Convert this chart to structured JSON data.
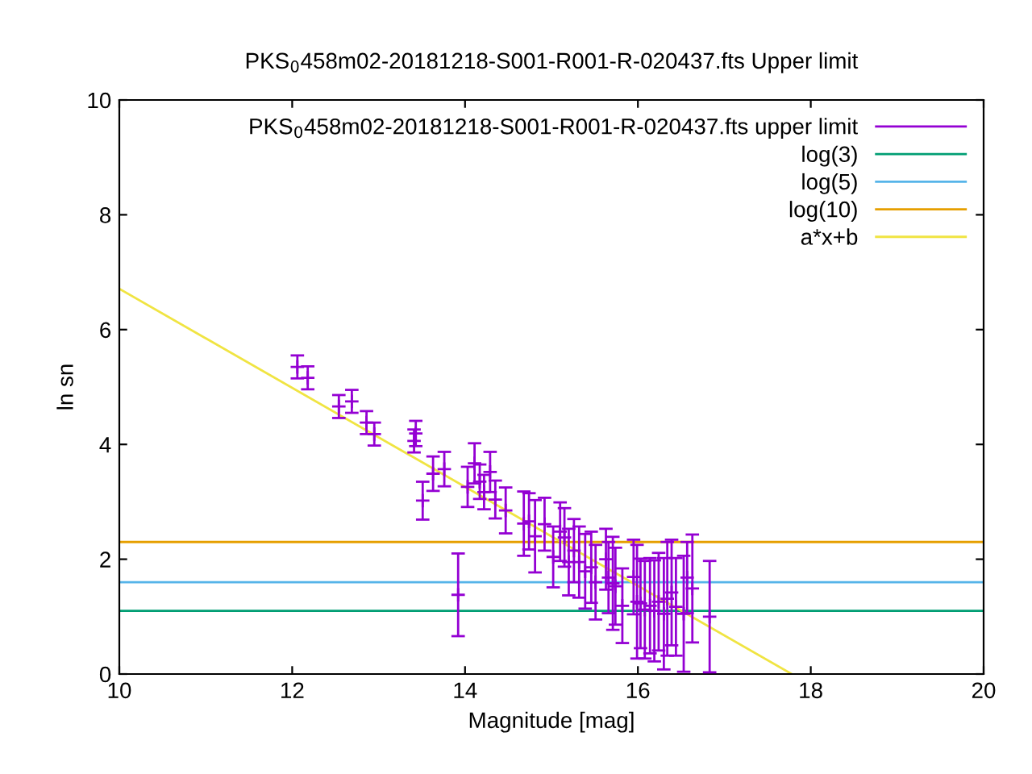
{
  "chart_data": {
    "type": "scatter",
    "title": "PKS$_{0}$458m02-20181218-S001-R001-R-020437.fts Upper limit",
    "xlabel": "Magnitude [mag]",
    "ylabel": "ln sn",
    "xlim": [
      10,
      20
    ],
    "ylim": [
      0,
      10
    ],
    "xticks": [
      10,
      12,
      14,
      16,
      18,
      20
    ],
    "yticks": [
      0,
      2,
      4,
      6,
      8,
      10
    ],
    "grid": false,
    "legend": "top right",
    "series": [
      {
        "name": "PKS$_{0}$458m02-20181218-S001-R001-R-020437.fts upper limit",
        "color": "#9400d3",
        "marker": "cross",
        "x": [
          12.06,
          12.18,
          12.54,
          12.69,
          12.86,
          12.95,
          13.41,
          13.43,
          13.51,
          13.63,
          13.76,
          13.92,
          14.03,
          14.11,
          14.17,
          14.22,
          14.29,
          14.35,
          14.47,
          14.68,
          14.74,
          14.81,
          14.92,
          15.02,
          15.1,
          15.15,
          15.2,
          15.26,
          15.32,
          15.39,
          15.46,
          15.51,
          15.63,
          15.66,
          15.71,
          15.74,
          15.82,
          15.95,
          15.99,
          16.03,
          16.08,
          16.14,
          16.19,
          16.24,
          16.3,
          16.34,
          16.39,
          16.44,
          16.53,
          16.57,
          16.63,
          16.83
        ],
        "values": [
          5.35,
          5.16,
          4.66,
          4.75,
          4.38,
          4.18,
          4.06,
          4.19,
          3.02,
          3.49,
          3.57,
          1.38,
          3.26,
          3.67,
          3.35,
          3.17,
          3.52,
          3.04,
          2.85,
          2.62,
          2.66,
          2.4,
          2.61,
          2.04,
          2.48,
          2.38,
          1.95,
          2.15,
          1.95,
          1.79,
          1.86,
          1.6,
          2.0,
          1.68,
          1.58,
          1.53,
          1.19,
          1.69,
          1.26,
          1.23,
          1.12,
          1.19,
          1.1,
          1.26,
          1.05,
          1.31,
          1.42,
          1.17,
          1.05,
          1.68,
          1.49,
          1.0
        ],
        "errors": [
          0.2,
          0.2,
          0.2,
          0.2,
          0.2,
          0.2,
          0.2,
          0.22,
          0.33,
          0.3,
          0.3,
          0.72,
          0.35,
          0.35,
          0.3,
          0.3,
          0.35,
          0.33,
          0.4,
          0.56,
          0.49,
          0.63,
          0.46,
          0.53,
          0.51,
          0.51,
          0.58,
          0.55,
          0.62,
          0.65,
          0.62,
          0.65,
          0.53,
          0.62,
          0.81,
          0.67,
          0.65,
          0.65,
          0.99,
          0.78,
          0.85,
          0.83,
          0.88,
          0.85,
          0.97,
          0.99,
          0.92,
          0.85,
          1.01,
          0.62,
          0.94,
          0.97
        ]
      },
      {
        "name": "log(3)",
        "type": "line",
        "color": "#009e73",
        "x": [
          10,
          20
        ],
        "values": [
          1.1,
          1.1
        ]
      },
      {
        "name": "log(5)",
        "type": "line",
        "color": "#56b4e9",
        "x": [
          10,
          20
        ],
        "values": [
          1.6,
          1.6
        ]
      },
      {
        "name": "log(10)",
        "type": "line",
        "color": "#e69f00",
        "x": [
          10,
          20
        ],
        "values": [
          2.3,
          2.3
        ]
      },
      {
        "name": "a*x+b",
        "type": "line",
        "color": "#f0e442",
        "x": [
          10,
          17.78
        ],
        "values": [
          6.71,
          0
        ]
      }
    ]
  }
}
